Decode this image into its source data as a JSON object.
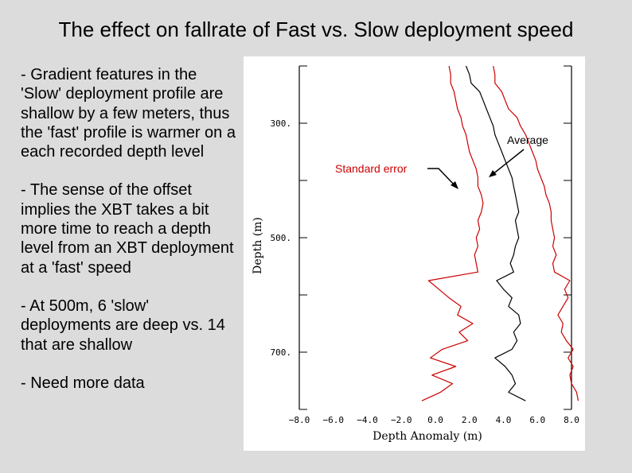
{
  "slide": {
    "title": "The effect on fallrate of Fast vs. Slow deployment speed",
    "bullets": [
      "- Gradient features in the 'Slow' deployment profile are shallow by a few meters, thus the 'fast' profile is warmer on a each recorded depth level",
      "- The sense of the offset implies the XBT takes a bit more time to reach a depth level from an XBT deployment at a 'fast' speed",
      "- At 500m, 6 'slow' deployments are deep vs. 14 that are shallow",
      "- Need more data"
    ]
  },
  "chart_data": {
    "type": "line",
    "xlabel": "Depth Anomaly (m)",
    "ylabel": "Depth (m)",
    "xlim": [
      -8,
      8
    ],
    "ylim": [
      800,
      200
    ],
    "x_ticks": [
      -8,
      -6,
      -4,
      -2,
      0,
      2,
      4,
      6,
      8
    ],
    "x_tick_labels": [
      "−8.0",
      "−6.0",
      "−4.0",
      "−2.0",
      "0.0",
      "2.0",
      "4.0",
      "6.0",
      "8.0"
    ],
    "y_ticks": [
      300,
      500,
      700
    ],
    "y_tick_labels": [
      "300.",
      "500.",
      "700."
    ],
    "annotations": [
      {
        "text": "Average",
        "color": "#000000"
      },
      {
        "text": "Standard error",
        "color": "#cc0000"
      }
    ],
    "series": [
      {
        "color": "#000000",
        "depth": [
          200,
          215,
          230,
          245,
          260,
          275,
          290,
          305,
          320,
          335,
          350,
          365,
          380,
          395,
          410,
          425,
          440,
          455,
          470,
          485,
          500,
          515,
          530,
          545,
          560,
          575,
          590,
          605,
          620,
          635,
          650,
          665,
          680,
          695,
          710,
          725,
          740,
          755,
          770,
          785
        ],
        "anomaly": [
          1.8,
          2.0,
          2.1,
          2.6,
          2.8,
          3.0,
          3.2,
          3.4,
          3.5,
          3.7,
          3.9,
          4.1,
          4.3,
          4.5,
          4.6,
          4.7,
          4.8,
          4.9,
          4.7,
          4.8,
          4.9,
          4.7,
          4.6,
          4.4,
          4.6,
          3.6,
          4.0,
          4.5,
          4.3,
          4.9,
          5.0,
          4.6,
          4.8,
          4.5,
          3.5,
          4.1,
          4.5,
          4.7,
          4.3,
          5.3
        ]
      },
      {
        "color": "#cc0000",
        "depth": [
          200,
          215,
          230,
          245,
          260,
          275,
          290,
          305,
          320,
          335,
          350,
          365,
          380,
          395,
          410,
          425,
          440,
          455,
          470,
          485,
          500,
          515,
          530,
          545,
          560,
          575,
          590,
          605,
          620,
          635,
          650,
          665,
          680,
          695,
          710,
          725,
          740,
          755,
          770,
          785
        ],
        "anomaly": [
          0.8,
          0.9,
          0.9,
          1.1,
          1.2,
          1.3,
          1.5,
          1.6,
          1.8,
          1.9,
          2.0,
          2.2,
          2.4,
          2.5,
          2.5,
          2.7,
          2.8,
          2.7,
          2.5,
          2.6,
          2.4,
          2.5,
          2.3,
          2.4,
          2.5,
          -0.4,
          0.2,
          0.8,
          1.5,
          1.3,
          2.2,
          1.4,
          1.9,
          0.4,
          -0.3,
          1.2,
          -0.2,
          1.0,
          0.3,
          -0.8
        ]
      },
      {
        "color": "#cc0000",
        "depth": [
          200,
          215,
          230,
          245,
          260,
          275,
          290,
          305,
          320,
          335,
          350,
          365,
          380,
          395,
          410,
          425,
          440,
          455,
          470,
          485,
          500,
          515,
          530,
          545,
          560,
          575,
          590,
          605,
          620,
          635,
          650,
          665,
          680,
          695,
          710,
          725,
          740,
          755,
          770,
          785
        ],
        "anomaly": [
          3.4,
          3.5,
          3.5,
          3.9,
          4.1,
          4.3,
          4.8,
          5.0,
          5.3,
          5.5,
          5.7,
          5.9,
          6.0,
          6.2,
          6.4,
          6.5,
          6.7,
          6.8,
          6.8,
          6.9,
          7.0,
          6.9,
          7.1,
          6.9,
          7.0,
          7.9,
          7.6,
          7.8,
          7.5,
          7.2,
          7.5,
          7.4,
          7.7,
          8.1,
          7.8,
          8.1,
          7.9,
          8.0,
          8.3,
          8.4
        ]
      }
    ]
  }
}
